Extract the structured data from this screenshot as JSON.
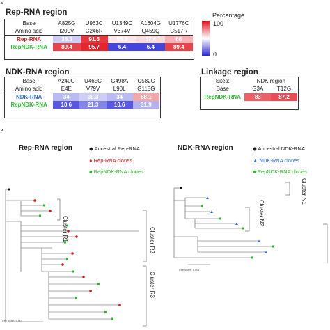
{
  "panel_letters": {
    "a": "a",
    "b": "b"
  },
  "percentage_legend": {
    "title": "Percentage",
    "max": "100",
    "min": "0",
    "colors": [
      "#e0101a",
      "#ffffff",
      "#2a2ad8"
    ]
  },
  "rep_region": {
    "title": "Rep-RNA region",
    "row_labels": [
      "Base",
      "Amino acid",
      "Rep-RNA",
      "RepNDK-RNA"
    ],
    "bases": [
      "A825G",
      "U963C",
      "U1349C",
      "A1604G",
      "U1776C"
    ],
    "amino_acids": [
      "I200V",
      "C246R",
      "V374V",
      "Q459Q",
      "C517R"
    ],
    "rep_rna": [
      "38.3",
      "91.5",
      "55.3",
      "57.4",
      "66"
    ],
    "repndk_rna": [
      "89.4",
      "95.7",
      "6.4",
      "6.4",
      "89.4"
    ]
  },
  "ndk_region": {
    "title": "NDK-RNA region",
    "row_labels": [
      "Base",
      "Amino acid",
      "NDK-RNA",
      "RepNDK-RNA"
    ],
    "bases": [
      "A240G",
      "U465C",
      "G498A",
      "U582C"
    ],
    "amino_acids": [
      "E4E",
      "V79V",
      "L90L",
      "G118G"
    ],
    "ndk_rna": [
      "34",
      "38.3",
      "34",
      "68.1"
    ],
    "repndk_rna": [
      "10.6",
      "21.3",
      "10.6",
      "31.9"
    ]
  },
  "linkage_region": {
    "title": "Linkage region",
    "sites_label": "Sites:",
    "ndk_region_label": "NDK region",
    "base_label": "Base",
    "bases": [
      "G3A",
      "T12G"
    ],
    "row_label": "RepNDK-RNA",
    "values": [
      "83",
      "87.2"
    ]
  },
  "rep_tree": {
    "title": "Rep-RNA region",
    "legend": [
      "Ancestral Rep-RNA",
      "Rep-RNA clones",
      "RepNDK-RNA clones"
    ],
    "clusters": [
      "Cluster R1",
      "Cluster R2",
      "Cluster R3"
    ],
    "scale": "Tree scale: 0.001"
  },
  "ndk_tree": {
    "title": "NDK-RNA region",
    "legend": [
      "Ancestral NDK-RNA",
      "NDK-RNA clones",
      "RepNDK-RNA clones"
    ],
    "clusters": [
      "Cluster N1",
      "Cluster N2"
    ],
    "scale": "Tree scale: 0.001"
  }
}
